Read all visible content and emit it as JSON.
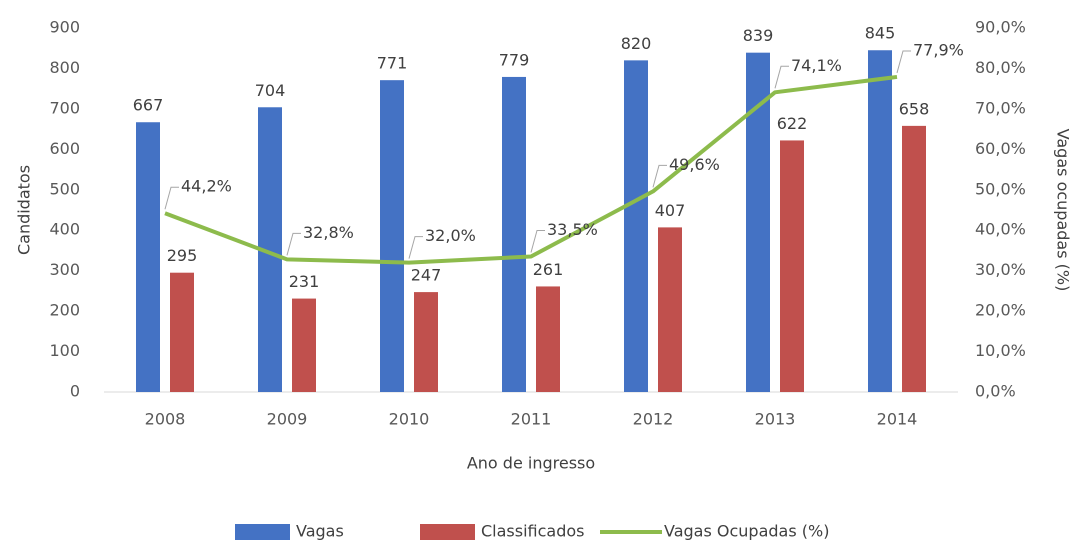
{
  "chart_data": {
    "type": "bar",
    "categories": [
      "2008",
      "2009",
      "2010",
      "2011",
      "2012",
      "2013",
      "2014"
    ],
    "series": [
      {
        "name": "Vagas",
        "type": "bar",
        "color": "#4472c4",
        "values": [
          667,
          704,
          771,
          779,
          820,
          839,
          845
        ]
      },
      {
        "name": "Classificados",
        "type": "bar",
        "color": "#c0504d",
        "values": [
          295,
          231,
          247,
          261,
          407,
          622,
          658
        ]
      },
      {
        "name": "Vagas Ocupadas (%)",
        "type": "line",
        "axis": "y2",
        "color": "#8dbb4c",
        "values": [
          44.2,
          32.8,
          32.0,
          33.5,
          49.6,
          74.1,
          77.9
        ],
        "value_labels": [
          "44,2%",
          "32,8%",
          "32,0%",
          "33,5%",
          "49,6%",
          "74,1%",
          "77,9%"
        ]
      }
    ],
    "ylabel": "Candidatos",
    "y2label": "Vagas ocupadas (%)",
    "xlabel": "Ano de ingresso",
    "ylim": [
      0,
      900
    ],
    "yticks": [
      0,
      100,
      200,
      300,
      400,
      500,
      600,
      700,
      800,
      900
    ],
    "y2lim": [
      0,
      90
    ],
    "y2ticks": [
      {
        "value": 0,
        "label": "0,0%"
      },
      {
        "value": 10,
        "label": "10,0%"
      },
      {
        "value": 20,
        "label": "20,0%"
      },
      {
        "value": 30,
        "label": "30,0%"
      },
      {
        "value": 40,
        "label": "40,0%"
      },
      {
        "value": 50,
        "label": "50,0%"
      },
      {
        "value": 60,
        "label": "60,0%"
      },
      {
        "value": 70,
        "label": "70,0%"
      },
      {
        "value": 80,
        "label": "80,0%"
      },
      {
        "value": 90,
        "label": "90,0%"
      }
    ],
    "grid": false,
    "legend": "bottom"
  }
}
